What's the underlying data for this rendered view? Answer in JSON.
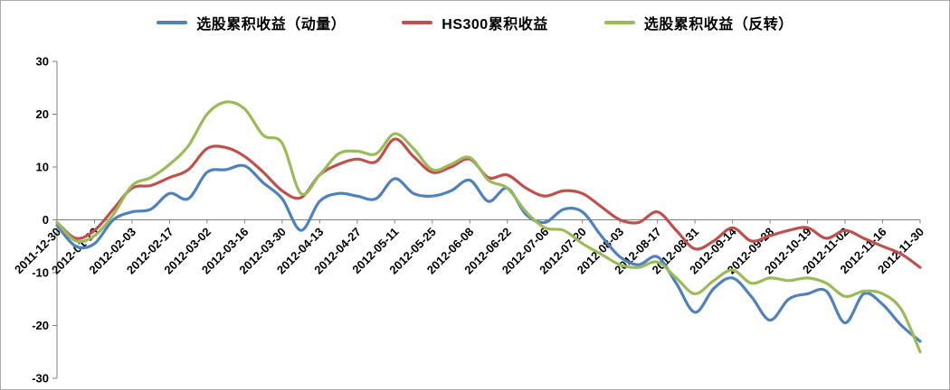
{
  "chart_data": {
    "type": "line",
    "title": "",
    "xlabel": "",
    "ylabel": "",
    "ylim": [
      -30,
      30
    ],
    "y_ticks": [
      30,
      20,
      10,
      0,
      -10,
      -20,
      -30
    ],
    "grid": false,
    "legend_position": "top",
    "x_labels": [
      "2011-12-30",
      "2012-01-13",
      "2012-02-03",
      "2012-02-17",
      "2012-03-02",
      "2012-03-16",
      "2012-03-30",
      "2012-04-13",
      "2012-04-27",
      "2012-05-11",
      "2012-05-25",
      "2012-06-08",
      "2012-06-22",
      "2012-07-06",
      "2012-07-20",
      "2012-08-03",
      "2012-08-17",
      "2012-08-31",
      "2012-09-14",
      "2012-09-28",
      "2012-10-19",
      "2012-11-02",
      "2012-11-16",
      "2012-11-30"
    ],
    "points_per_label_interval": 2,
    "series": [
      {
        "name": "选股累积收益（动量）",
        "color": "#4F81BD",
        "values": [
          -1,
          -5,
          -4.5,
          0,
          1.5,
          2,
          5,
          4,
          9,
          9.5,
          10.2,
          7,
          4,
          -2,
          3.5,
          5,
          4.5,
          4,
          7.8,
          5,
          4.5,
          5.5,
          7.5,
          3.5,
          6,
          1,
          -0.5,
          2,
          1.5,
          -3,
          -7,
          -8.5,
          -7,
          -12,
          -17.5,
          -13,
          -11,
          -14.5,
          -19,
          -15,
          -14,
          -13.5,
          -19.5,
          -14,
          -16,
          -20,
          -23
        ]
      },
      {
        "name": "HS300累积收益",
        "color": "#C0504D",
        "values": [
          -0.5,
          -3.5,
          -2,
          2,
          6,
          6.5,
          8,
          9.5,
          13.5,
          13.7,
          12,
          9,
          5.5,
          4.2,
          8.5,
          10.5,
          11.5,
          11,
          15.3,
          12,
          9,
          10,
          11.5,
          8,
          8.5,
          6,
          4.5,
          5.5,
          5,
          2.5,
          0,
          -0.5,
          1.5,
          -2,
          -5.5,
          -4,
          -1.5,
          -4,
          -3,
          -2,
          -1.5,
          -3.5,
          -2,
          -3.5,
          -5,
          -6.5,
          -9
        ]
      },
      {
        "name": "选股累积收益（反转）",
        "color": "#9BBB59",
        "values": [
          -0.5,
          -4,
          -3,
          1,
          6.5,
          8,
          10.5,
          14,
          20,
          22.3,
          21,
          16,
          14.5,
          5,
          8.5,
          12.5,
          13,
          12.5,
          16.3,
          13.5,
          9.5,
          10.5,
          11.8,
          7.5,
          6,
          1.5,
          -1.5,
          -2,
          -4.5,
          -6.5,
          -8.5,
          -9,
          -8,
          -11,
          -14,
          -11.5,
          -9.5,
          -12,
          -11,
          -11.5,
          -11,
          -12,
          -14.5,
          -13.5,
          -14,
          -17,
          -25
        ]
      }
    ]
  }
}
